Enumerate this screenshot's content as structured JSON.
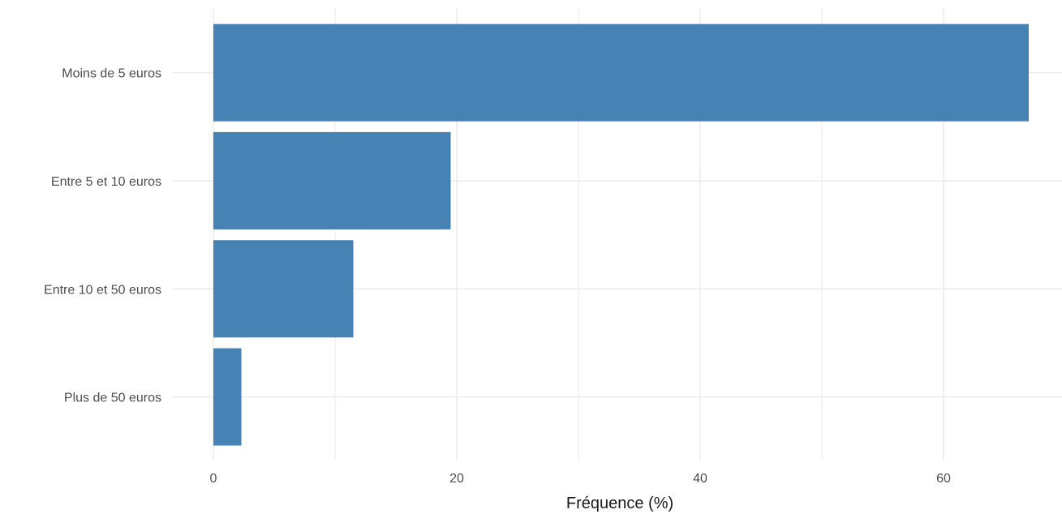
{
  "chart_data": {
    "type": "bar",
    "orientation": "horizontal",
    "title": "",
    "xlabel": "Fréquence (%)",
    "ylabel": "",
    "categories": [
      "Moins de 5 euros",
      "Entre 5 et 10 euros",
      "Entre 10 et 50 euros",
      "Plus de 50 euros"
    ],
    "values": [
      67.0,
      19.5,
      11.5,
      2.3
    ],
    "x_ticks": [
      0,
      20,
      40,
      60
    ],
    "x_tick_labels": [
      "0",
      "20",
      "40",
      "60"
    ],
    "xlim": [
      0,
      70
    ],
    "grid": true,
    "bar_color": "#4682b4",
    "grid_color": "#ebebeb"
  }
}
